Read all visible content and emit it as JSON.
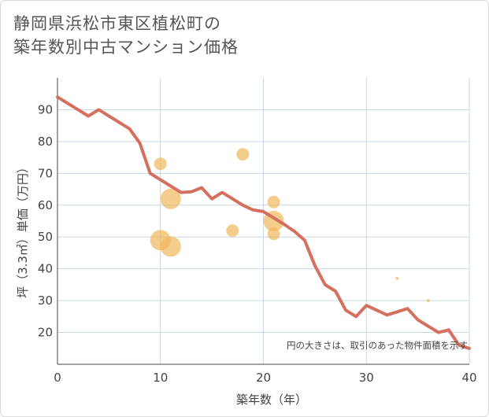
{
  "title_line1": "静岡県浜松市東区植松町の",
  "title_line2": "築年数別中古マンション価格",
  "chart_data": {
    "type": "scatter",
    "title": "静岡県浜松市東区植松町の築年数別中古マンション価格",
    "xlabel": "築年数（年）",
    "ylabel": "坪（3.3㎡）単価（万円）",
    "xlim": [
      0,
      40
    ],
    "ylim": [
      10,
      100
    ],
    "xticks": [
      0,
      10,
      20,
      30,
      40
    ],
    "yticks": [
      20,
      30,
      40,
      50,
      60,
      70,
      80,
      90
    ],
    "note": "円の大きさは、取引のあった物件面積を示す",
    "colors": {
      "line": "#d4705d",
      "bubble": "#f0b65a",
      "grid": "#c8d7e3"
    },
    "series": [
      {
        "name": "trend",
        "kind": "line",
        "x": [
          0,
          1,
          2,
          3,
          4,
          5,
          6,
          7,
          8,
          9,
          10,
          11,
          12,
          13,
          14,
          15,
          16,
          17,
          18,
          19,
          20,
          21,
          22,
          23,
          24,
          25,
          26,
          27,
          28,
          29,
          30,
          31,
          32,
          33,
          34,
          35,
          36,
          37,
          38,
          39,
          40
        ],
        "y": [
          94,
          92,
          90,
          88,
          90,
          88,
          86,
          84,
          79.5,
          70,
          68,
          66,
          64,
          64.2,
          65.5,
          62,
          64,
          62,
          60,
          58.5,
          58,
          56,
          54,
          51.8,
          49,
          41,
          35,
          33,
          27,
          25,
          28.5,
          27,
          25.5,
          26.5,
          27.5,
          24,
          22,
          20,
          20.8,
          16,
          15
        ]
      },
      {
        "name": "transactions",
        "kind": "bubble",
        "points": [
          {
            "x": 10,
            "y": 73,
            "size": 8
          },
          {
            "x": 11,
            "y": 62,
            "size": 13
          },
          {
            "x": 10,
            "y": 49,
            "size": 13
          },
          {
            "x": 11,
            "y": 47,
            "size": 13
          },
          {
            "x": 17,
            "y": 52,
            "size": 8
          },
          {
            "x": 18,
            "y": 76,
            "size": 8
          },
          {
            "x": 21,
            "y": 61,
            "size": 8
          },
          {
            "x": 21,
            "y": 55,
            "size": 13
          },
          {
            "x": 21,
            "y": 51,
            "size": 8
          },
          {
            "x": 33,
            "y": 37,
            "size": 2
          },
          {
            "x": 36,
            "y": 30,
            "size": 2
          }
        ]
      }
    ]
  }
}
